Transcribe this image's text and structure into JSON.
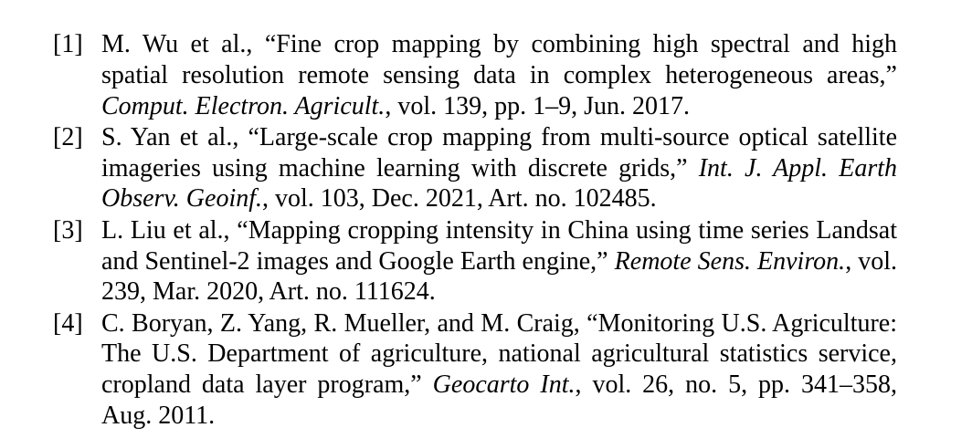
{
  "references": [
    {
      "num": "[1]",
      "before": "M. Wu et al., “Fine crop mapping by combining high spectral and high spatial resolution remote sensing data in complex heterogeneous areas,” ",
      "venue": "Comput. Electron. Agricult.",
      "after": ", vol. 139, pp. 1–9, Jun. 2017."
    },
    {
      "num": "[2]",
      "before": "S. Yan et al., “Large-scale crop mapping from multi-source optical satellite imageries using machine learning with discrete grids,” ",
      "venue": "Int. J. Appl. Earth Observ. Geoinf.",
      "after": ", vol. 103, Dec. 2021, Art. no. 102485."
    },
    {
      "num": "[3]",
      "before": "L. Liu et al., “Mapping cropping intensity in China using time series Landsat and Sentinel-2 images and Google Earth engine,” ",
      "venue": "Remote Sens. Environ.",
      "after": ", vol. 239, Mar. 2020, Art. no. 111624."
    },
    {
      "num": "[4]",
      "before": "C. Boryan, Z. Yang, R. Mueller, and M. Craig, “Monitoring U.S. Agriculture: The U.S. Department of agriculture, national agricultural statistics service, cropland data layer program,” ",
      "venue": "Geocarto Int.",
      "after": ", vol. 26, no. 5, pp. 341–358, Aug. 2011."
    }
  ]
}
